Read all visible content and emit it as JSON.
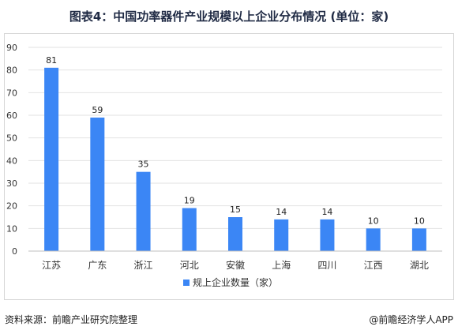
{
  "title": "图表4：中国功率器件产业规模以上企业分布情况 (单位：家)",
  "source": "资料来源：前瞻产业研究院整理",
  "credit": "@前瞻经济学人APP",
  "colors": {
    "bar": "#3b86f5",
    "grid": "#e2e2e2",
    "axis": "#bfbfbf"
  },
  "chart_data": {
    "type": "bar",
    "categories": [
      "江苏",
      "广东",
      "浙江",
      "河北",
      "安徽",
      "上海",
      "四川",
      "江西",
      "湖北"
    ],
    "series": [
      {
        "name": "规上企业数量（家）",
        "values": [
          81,
          59,
          35,
          19,
          15,
          14,
          14,
          10,
          10
        ]
      }
    ],
    "ylim": [
      0,
      90
    ],
    "yticks": [
      0,
      10,
      20,
      30,
      40,
      50,
      60,
      70,
      80,
      90
    ],
    "grid": true,
    "legend": "bottom-center",
    "data_labels": true
  }
}
